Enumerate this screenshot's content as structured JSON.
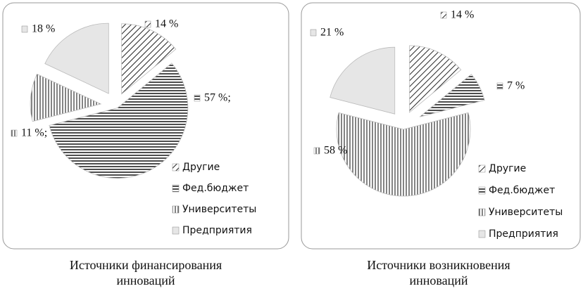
{
  "chart_data": [
    {
      "type": "pie",
      "title": "Источники финансирования инноваций",
      "categories": [
        "Другие",
        "Фед.бюджет",
        "Университеты",
        "Предприятия"
      ],
      "values": [
        14,
        57,
        11,
        18
      ],
      "value_labels": [
        "14 %",
        "57 %;",
        "11 %;",
        "18 %"
      ]
    },
    {
      "type": "pie",
      "title": "Источники возникновения инноваций",
      "categories": [
        "Другие",
        "Фед.бюджет",
        "Университеты",
        "Предприятия"
      ],
      "values": [
        14,
        7,
        58,
        21
      ],
      "value_labels": [
        "14 %",
        "7 %",
        "58 %",
        "21 %"
      ]
    }
  ]
}
